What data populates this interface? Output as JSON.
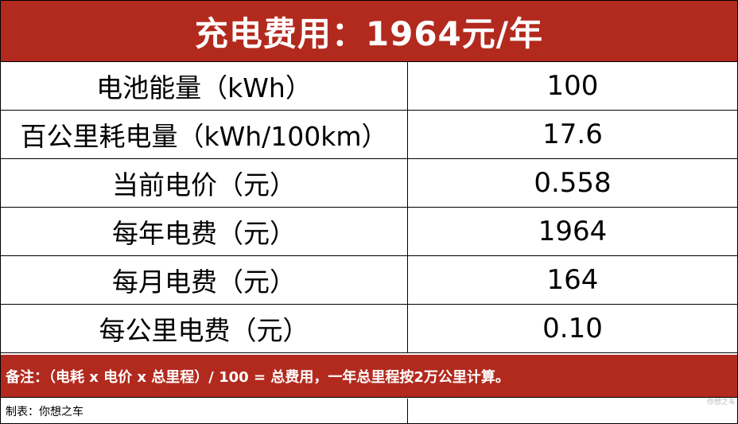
{
  "title": "充电费用：1964元/年",
  "rows": [
    {
      "label": "电池能量（kWh）",
      "value": "100"
    },
    {
      "label": "百公里耗电量（kWh/100km）",
      "value": "17.6"
    },
    {
      "label": "当前电价（元）",
      "value": "0.558"
    },
    {
      "label": "每年电费（元）",
      "value": "1964"
    },
    {
      "label": "每月电费（元）",
      "value": "164"
    },
    {
      "label": "每公里电费（元）",
      "value": "0.10"
    }
  ],
  "note": "备注：（电耗 x 电价 x 总里程）/ 100 = 总费用，一年总里程按2万公里计算。",
  "watermark": "你想之车",
  "footer": "制表：你想之车"
}
